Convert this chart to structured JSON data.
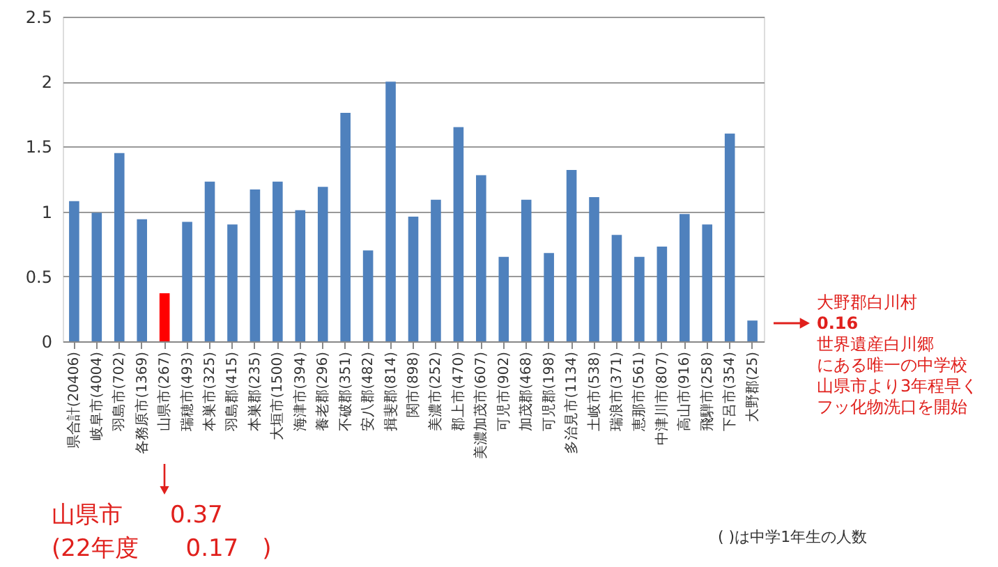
{
  "chart_data": {
    "type": "bar",
    "categories": [
      "県合計(20406)",
      "岐阜市(4004)",
      "羽島市(702)",
      "各務原市(1369)",
      "山県市(267)",
      "瑞穂市(493)",
      "本巣市(325)",
      "羽島郡(415)",
      "本巣郡(235)",
      "大垣市(1500)",
      "海津市(394)",
      "養老郡(296)",
      "不破郡(351)",
      "安八郡(482)",
      "揖斐郡(814)",
      "関市(898)",
      "美濃市(252)",
      "郡上市(470)",
      "美濃加茂市(607)",
      "可児市(902)",
      "加茂郡(468)",
      "可児郡(198)",
      "多治見市(1134)",
      "土岐市(538)",
      "瑞浪市(371)",
      "恵那市(561)",
      "中津川市(807)",
      "高山市(916)",
      "飛騨市(258)",
      "下呂市(354)",
      "大野郡(25)"
    ],
    "values": [
      1.08,
      0.99,
      1.45,
      0.94,
      0.37,
      0.92,
      1.23,
      0.9,
      1.17,
      1.23,
      1.01,
      1.19,
      1.76,
      0.7,
      2.0,
      0.96,
      1.09,
      1.65,
      1.28,
      0.65,
      1.09,
      0.68,
      1.32,
      1.11,
      0.82,
      0.65,
      0.73,
      0.98,
      0.9,
      1.6,
      0.16
    ],
    "colors": [
      "#4f81bd",
      "#4f81bd",
      "#4f81bd",
      "#4f81bd",
      "#ff0000",
      "#4f81bd",
      "#4f81bd",
      "#4f81bd",
      "#4f81bd",
      "#4f81bd",
      "#4f81bd",
      "#4f81bd",
      "#4f81bd",
      "#4f81bd",
      "#4f81bd",
      "#4f81bd",
      "#4f81bd",
      "#4f81bd",
      "#4f81bd",
      "#4f81bd",
      "#4f81bd",
      "#4f81bd",
      "#4f81bd",
      "#4f81bd",
      "#4f81bd",
      "#4f81bd",
      "#4f81bd",
      "#4f81bd",
      "#4f81bd",
      "#4f81bd",
      "#4f81bd"
    ],
    "ylim": [
      0,
      2.5
    ],
    "yticks": [
      0,
      0.5,
      1,
      1.5,
      2,
      2.5
    ],
    "grid": "y",
    "annotations": [
      "山県市　　0.37",
      "(22年度　　0.17　)",
      "大野郡白川村",
      "0.16",
      "世界遺産白川郷",
      "にある唯一の中学校",
      "山県市より3年程早く",
      "フッ化物洗口を開始",
      "( )は中学1年生の人数"
    ]
  }
}
